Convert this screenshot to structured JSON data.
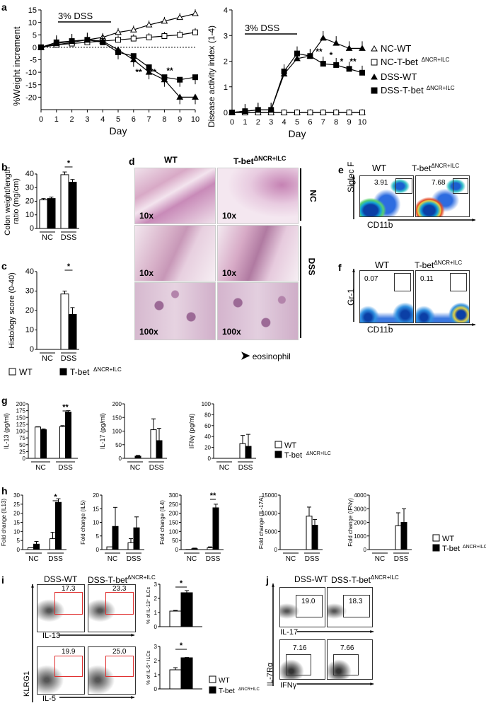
{
  "panels": {
    "a": "a",
    "b": "b",
    "c": "c",
    "d": "d",
    "e": "e",
    "f": "f",
    "g": "g",
    "h": "h",
    "i": "i",
    "j": "j"
  },
  "panel_a": {
    "dss_label": "3%  DSS",
    "left_ylabel": "%Weight increment",
    "right_ylabel": "Disease activity index (1-4)",
    "xlabel": "Day",
    "legend": [
      "NC-WT",
      "NC-T-bet",
      "DSS-WT",
      "DSS-T-bet"
    ],
    "legend_sup": "ΔNCR+ILC",
    "sig_left": [
      "**",
      "***",
      "**"
    ],
    "sig_right": [
      "**",
      "*",
      "*",
      "**"
    ]
  },
  "panel_b": {
    "ylabel": "Colon weight/length ratio (mg/cm)",
    "sig": "*"
  },
  "panel_c": {
    "ylabel": "Histology score (0-40)",
    "sig": "*"
  },
  "bc_legend": {
    "wt": "WT",
    "ko": "T-bet",
    "ko_sup": "ΔNCR+ILC"
  },
  "panel_d": {
    "col_wt": "WT",
    "col_ko": "T-bet",
    "col_ko_sup": "ΔNCR+ILC",
    "row_nc": "NC",
    "row_dss": "DSS",
    "mags": [
      "10x",
      "10x",
      "10x",
      "10x",
      "100x",
      "100x"
    ],
    "eos_label": "eosinophil"
  },
  "panel_e": {
    "wt": "WT",
    "ko": "T-bet",
    "ko_sup": "ΔNCR+ILC",
    "wt_val": "3.91",
    "ko_val": "7.68",
    "ylabel": "Siglec F",
    "xlabel": "CD11b"
  },
  "panel_f": {
    "wt": "WT",
    "ko": "T-bet",
    "ko_sup": "ΔNCR+ILC",
    "wt_val": "0.07",
    "ko_val": "0.11",
    "ylabel": "Gr-1",
    "xlabel": "CD11b"
  },
  "panel_g": {
    "ylabels": [
      "IL-13 (pg/ml)",
      "IL-17 (pg/ml)",
      "IFNγ (pg/ml)"
    ],
    "sig": "**"
  },
  "panel_h": {
    "ylabels": [
      "Fold change (IL13)",
      "Fold change (IL5)",
      "Fold change (IL4)",
      "Fold change (IL-17A)",
      "Fold change (IFNγ)"
    ],
    "sig": [
      "*",
      "**"
    ]
  },
  "panel_i": {
    "col_wt": "DSS-WT",
    "col_ko": "DSS-T-bet",
    "col_ko_sup": "ΔNCR+ILC",
    "vals": [
      "17.3",
      "23.3",
      "19.9",
      "25.0"
    ],
    "ylabel": "KLRG1",
    "xlabel_top": "IL-13",
    "xlabel_bot": "IL-5",
    "bar_ylabels": [
      "% of IL-13⁺ ILCs",
      "% of IL-5⁺ ILCs"
    ],
    "sig": "*"
  },
  "panel_j": {
    "col_wt": "DSS-WT",
    "col_ko": "DSS-T-bet",
    "col_ko_sup": "ΔNCR+ILC",
    "vals": [
      "19.0",
      "18.3",
      "7.16",
      "7.66"
    ],
    "ylabel": "IL-7Rα",
    "xlabel_top": "IL-17",
    "xlabel_bot": "IFNγ"
  },
  "nc_dss": [
    "NC",
    "DSS"
  ],
  "colors": {
    "wt": "#ffffff",
    "ko": "#000000"
  },
  "chart_data": [
    {
      "type": "line",
      "id": "a-weight",
      "x": [
        0,
        1,
        2,
        3,
        4,
        5,
        6,
        7,
        8,
        9,
        10
      ],
      "ylim": [
        -25,
        15
      ],
      "yticks": [
        15,
        10,
        5,
        0,
        -5,
        -10,
        -15,
        -20
      ],
      "xlabel": "Day",
      "ylabel": "%Weight increment",
      "series": [
        {
          "name": "NC-WT",
          "values": [
            0,
            1,
            2,
            3,
            4,
            6,
            7,
            9,
            10.5,
            12,
            13.5
          ]
        },
        {
          "name": "NC-T-bet",
          "values": [
            0,
            1,
            1.5,
            2,
            2.5,
            3,
            3.5,
            4,
            4.5,
            5,
            6
          ]
        },
        {
          "name": "DSS-WT",
          "values": [
            0,
            1.5,
            2.5,
            3,
            2.5,
            -1,
            -5,
            -10,
            -13,
            -20,
            -20
          ]
        },
        {
          "name": "DSS-T-bet",
          "values": [
            0,
            2,
            2.5,
            3,
            2,
            -2,
            -3.5,
            -8,
            -12,
            -13,
            -12
          ]
        }
      ]
    },
    {
      "type": "line",
      "id": "a-dai",
      "x": [
        0,
        1,
        2,
        3,
        4,
        5,
        6,
        7,
        8,
        9,
        10
      ],
      "ylim": [
        0,
        4
      ],
      "yticks": [
        0,
        1,
        2,
        3,
        4
      ],
      "xlabel": "Day",
      "ylabel": "Disease activity index (1-4)",
      "series": [
        {
          "name": "NC-WT",
          "values": [
            0,
            0,
            0,
            0,
            0,
            0,
            0,
            0,
            0,
            0,
            0
          ]
        },
        {
          "name": "NC-T-bet",
          "values": [
            0,
            0,
            0,
            0,
            0,
            0,
            0,
            0,
            0,
            0,
            0
          ]
        },
        {
          "name": "DSS-WT",
          "values": [
            0,
            0.05,
            0.1,
            0.1,
            1.5,
            2.1,
            2.2,
            2.9,
            2.7,
            2.5,
            2.5
          ]
        },
        {
          "name": "DSS-T-bet",
          "values": [
            0,
            0.05,
            0.1,
            0.1,
            1.6,
            2.3,
            2.2,
            1.9,
            1.85,
            1.7,
            1.55
          ]
        }
      ]
    },
    {
      "type": "bar",
      "id": "b",
      "categories": [
        "NC",
        "DSS"
      ],
      "ylim": [
        0,
        40
      ],
      "yticks": [
        0,
        10,
        20,
        30,
        40
      ],
      "series": [
        {
          "name": "WT",
          "values": [
            21,
            39.5
          ]
        },
        {
          "name": "T-bet",
          "values": [
            22,
            34
          ]
        }
      ]
    },
    {
      "type": "bar",
      "id": "c",
      "categories": [
        "NC",
        "DSS"
      ],
      "ylim": [
        0,
        40
      ],
      "yticks": [
        0,
        10,
        20,
        30,
        40
      ],
      "series": [
        {
          "name": "WT",
          "values": [
            0,
            28.5
          ]
        },
        {
          "name": "T-bet",
          "values": [
            0,
            18
          ]
        }
      ]
    },
    {
      "type": "bar",
      "id": "g1",
      "categories": [
        "NC",
        "DSS"
      ],
      "ylim": [
        0,
        200
      ],
      "yticks": [
        0,
        25,
        50,
        75,
        100,
        125,
        150,
        175,
        200
      ],
      "series": [
        {
          "name": "WT",
          "values": [
            115,
            117
          ]
        },
        {
          "name": "T-bet",
          "values": [
            105,
            170
          ]
        }
      ]
    },
    {
      "type": "bar",
      "id": "g2",
      "categories": [
        "NC",
        "DSS"
      ],
      "ylim": [
        0,
        200
      ],
      "yticks": [
        0,
        50,
        100,
        150,
        200
      ],
      "series": [
        {
          "name": "WT",
          "values": [
            0,
            105
          ]
        },
        {
          "name": "T-bet",
          "values": [
            8,
            65
          ]
        }
      ]
    },
    {
      "type": "bar",
      "id": "g3",
      "categories": [
        "NC",
        "DSS"
      ],
      "ylim": [
        0,
        100
      ],
      "yticks": [
        0,
        20,
        40,
        60,
        80,
        100
      ],
      "series": [
        {
          "name": "WT",
          "values": [
            0,
            27
          ]
        },
        {
          "name": "T-bet",
          "values": [
            0,
            22
          ]
        }
      ]
    },
    {
      "type": "bar",
      "id": "h1",
      "categories": [
        "NC",
        "DSS"
      ],
      "ylim": [
        0,
        30
      ],
      "yticks": [
        0,
        5,
        10,
        15,
        20,
        25,
        30
      ],
      "series": [
        {
          "name": "WT",
          "values": [
            1,
            6
          ]
        },
        {
          "name": "T-bet",
          "values": [
            3,
            26
          ]
        }
      ]
    },
    {
      "type": "bar",
      "id": "h2",
      "categories": [
        "NC",
        "DSS"
      ],
      "ylim": [
        0,
        20
      ],
      "yticks": [
        0,
        5,
        10,
        15,
        20
      ],
      "series": [
        {
          "name": "WT",
          "values": [
            1,
            2.5
          ]
        },
        {
          "name": "T-bet",
          "values": [
            8.5,
            8
          ]
        }
      ]
    },
    {
      "type": "bar",
      "id": "h3",
      "categories": [
        "NC",
        "DSS"
      ],
      "ylim": [
        0,
        300
      ],
      "yticks": [
        0,
        50,
        100,
        150,
        200,
        250,
        300
      ],
      "series": [
        {
          "name": "WT",
          "values": [
            1,
            10
          ]
        },
        {
          "name": "T-bet",
          "values": [
            5,
            230
          ]
        }
      ]
    },
    {
      "type": "bar",
      "id": "h4",
      "categories": [
        "NC",
        "DSS"
      ],
      "ylim": [
        0,
        15000
      ],
      "yticks": [
        0,
        5000,
        10000,
        15000
      ],
      "series": [
        {
          "name": "WT",
          "values": [
            0,
            9200
          ]
        },
        {
          "name": "T-bet",
          "values": [
            0,
            6700
          ]
        }
      ]
    },
    {
      "type": "bar",
      "id": "h5",
      "categories": [
        "NC",
        "DSS"
      ],
      "ylim": [
        0,
        4000
      ],
      "yticks": [
        0,
        1000,
        2000,
        3000,
        4000
      ],
      "series": [
        {
          "name": "WT",
          "values": [
            0,
            1750
          ]
        },
        {
          "name": "T-bet",
          "values": [
            0,
            2000
          ]
        }
      ]
    },
    {
      "type": "bar",
      "id": "i1",
      "categories": [
        ""
      ],
      "ylim": [
        0,
        3
      ],
      "yticks": [
        0,
        1,
        2,
        3
      ],
      "series": [
        {
          "name": "WT",
          "values": [
            1.1
          ]
        },
        {
          "name": "T-bet",
          "values": [
            2.4
          ]
        }
      ]
    },
    {
      "type": "bar",
      "id": "i2",
      "categories": [
        ""
      ],
      "ylim": [
        0,
        3
      ],
      "yticks": [
        0,
        1,
        2,
        3
      ],
      "series": [
        {
          "name": "WT",
          "values": [
            1.35
          ]
        },
        {
          "name": "T-bet",
          "values": [
            2.2
          ]
        }
      ]
    }
  ]
}
